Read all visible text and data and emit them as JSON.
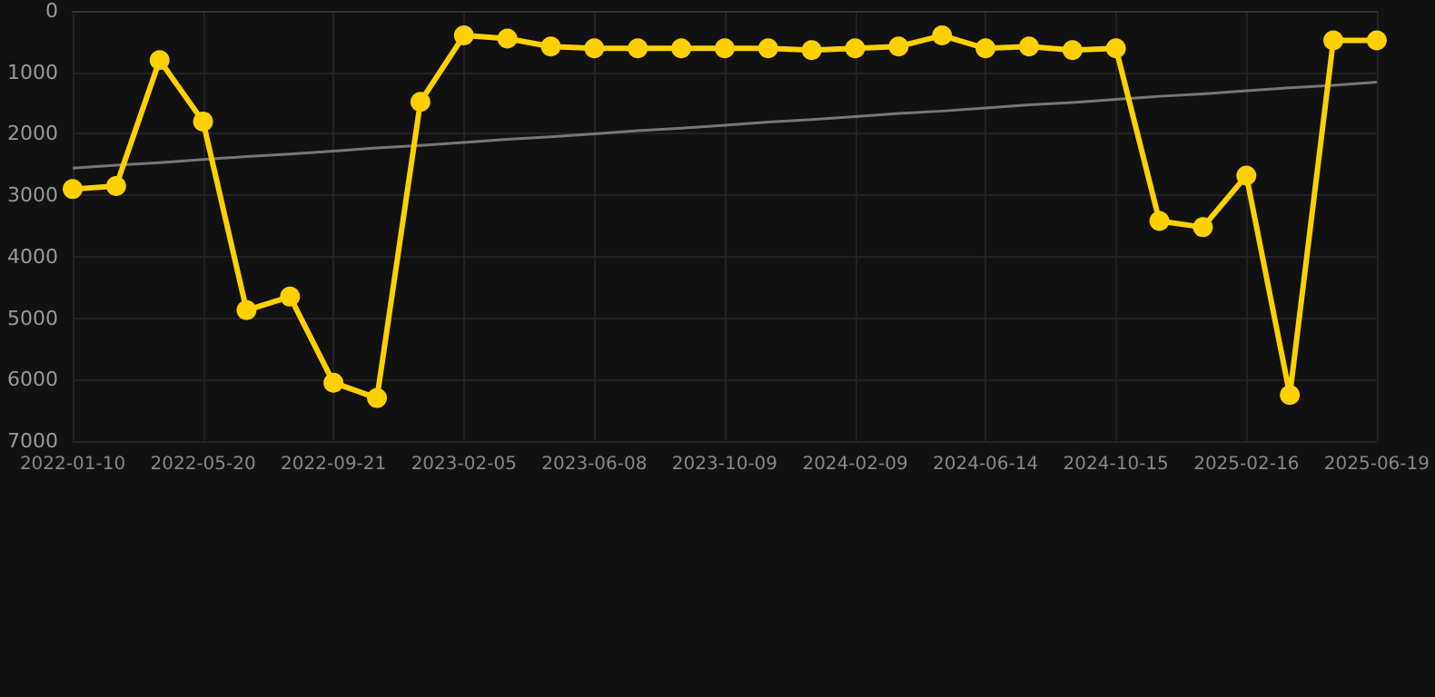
{
  "chart_data": {
    "type": "line",
    "categories": [
      "2022-01-10",
      null,
      null,
      "2022-05-20",
      null,
      null,
      "2022-09-21",
      null,
      null,
      "2023-02-05",
      null,
      null,
      "2023-06-08",
      null,
      null,
      "2023-10-09",
      null,
      null,
      "2024-02-09",
      null,
      null,
      "2024-06-14",
      null,
      null,
      "2024-10-15",
      null,
      null,
      "2025-02-16",
      null,
      null,
      "2025-06-19"
    ],
    "series": [
      {
        "color": "#ffd000",
        "marker": "circle",
        "values": [
          2900,
          2850,
          800,
          1800,
          4870,
          4650,
          6050,
          6300,
          1480,
          400,
          450,
          580,
          610,
          610,
          610,
          610,
          610,
          640,
          610,
          580,
          400,
          610,
          580,
          640,
          610,
          3420,
          3520,
          2680,
          6250,
          480,
          480
        ]
      },
      {
        "type": "line",
        "color": "#777777",
        "marker": "none",
        "values": [
          2560,
          2510,
          2470,
          2420,
          2370,
          2330,
          2280,
          2230,
          2190,
          2140,
          2090,
          2050,
          2000,
          1950,
          1910,
          1860,
          1810,
          1770,
          1720,
          1670,
          1630,
          1580,
          1530,
          1490,
          1440,
          1390,
          1350,
          1300,
          1250,
          1210,
          1160
        ]
      }
    ],
    "ylim": [
      7000,
      0
    ],
    "yticks": [
      0,
      1000,
      2000,
      3000,
      4000,
      5000,
      6000,
      7000
    ],
    "grid": true
  }
}
